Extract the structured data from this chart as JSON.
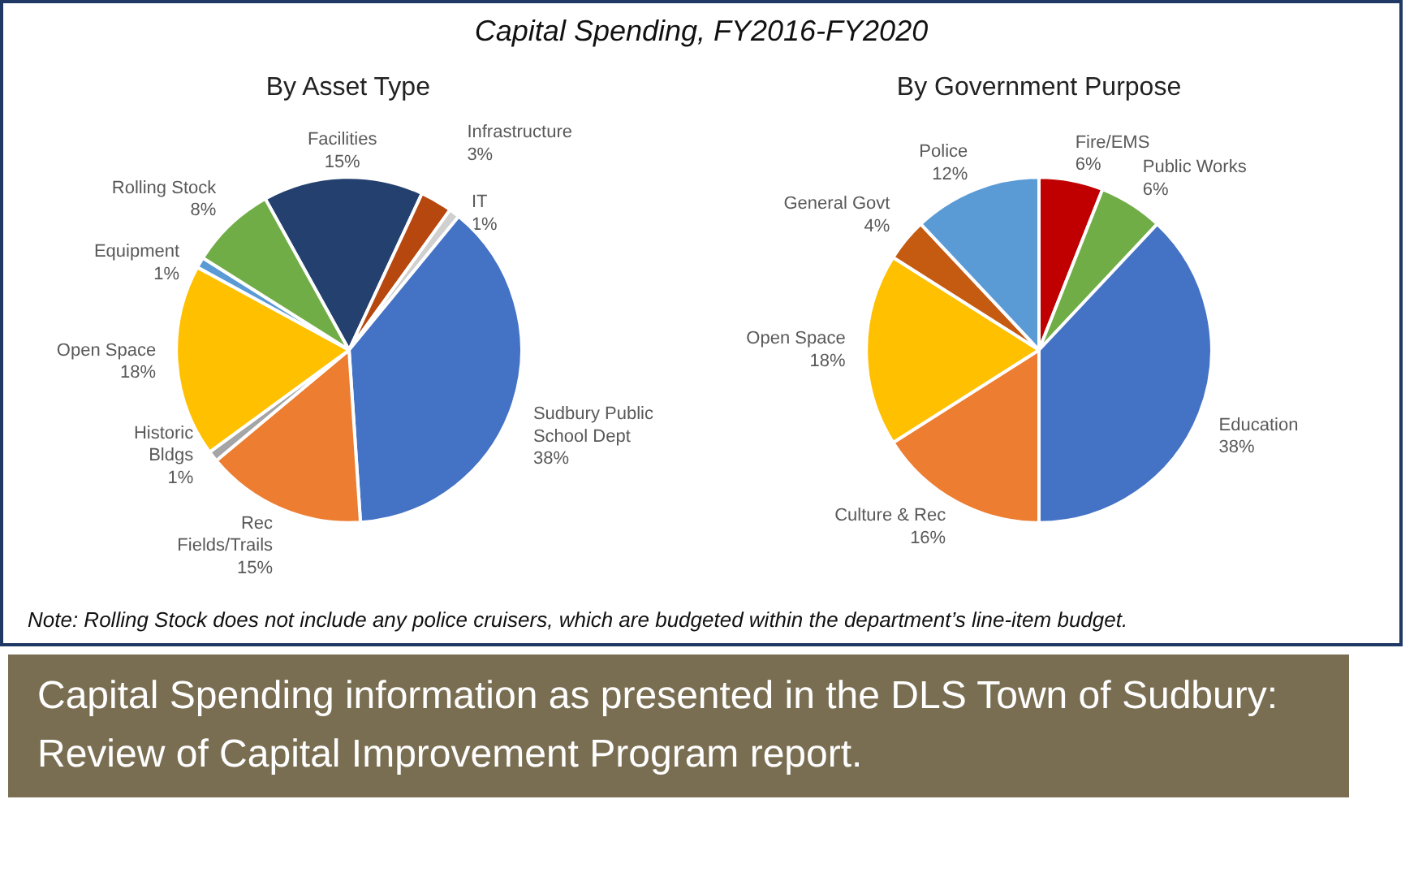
{
  "chart_data": [
    {
      "type": "pie",
      "title": "By Asset Type",
      "categories": [
        "Facilities",
        "Infrastructure",
        "IT",
        "Sudbury Public School Dept",
        "Rec Fields/Trails",
        "Historic Bldgs",
        "Open Space",
        "Equipment",
        "Rolling Stock"
      ],
      "values": [
        15,
        3,
        1,
        38,
        15,
        1,
        18,
        1,
        8
      ],
      "value_labels": [
        "15%",
        "3%",
        "1%",
        "38%",
        "15%",
        "1%",
        "18%",
        "1%",
        "8%"
      ],
      "colors": [
        "#24406e",
        "#b6470f",
        "#d0d0d0",
        "#4472c4",
        "#ed7d31",
        "#a5a5a5",
        "#ffc000",
        "#5b9bd5",
        "#70ad47"
      ],
      "annotations": [
        "Capital Spending, FY2016-FY2020",
        "Note: Rolling Stock does not include any police cruisers, which are budgeted within the department’s line-item budget.",
        "Capital Spending information as presented in the DLS Town of Sudbury: Review of Capital Improvement Program report."
      ]
    },
    {
      "type": "pie",
      "title": "By Government Purpose",
      "categories": [
        "Fire/EMS",
        "Public Works",
        "Education",
        "Culture & Rec",
        "Open Space",
        "General Govt",
        "Police"
      ],
      "values": [
        6,
        6,
        38,
        16,
        18,
        4,
        12
      ],
      "value_labels": [
        "6%",
        "6%",
        "38%",
        "16%",
        "18%",
        "4%",
        "12%"
      ],
      "colors": [
        "#c00000",
        "#70ad47",
        "#4472c4",
        "#ed7d31",
        "#ffc000",
        "#c55a11",
        "#5b9bd5"
      ]
    }
  ]
}
